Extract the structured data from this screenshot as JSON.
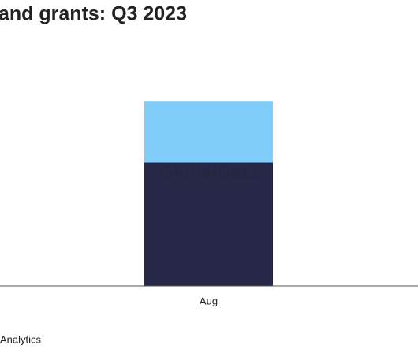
{
  "chart_data": {
    "type": "stacked_bar",
    "title": "and grants: Q3 2023",
    "watermark": "GlobalData",
    "source": "Analytics",
    "categories": [
      "Aug"
    ],
    "series": [
      {
        "color": "#272848",
        "values": [
          2
        ]
      },
      {
        "color": "#80cdfa",
        "values": [
          1
        ]
      }
    ],
    "ylim": [
      0,
      4
    ]
  }
}
